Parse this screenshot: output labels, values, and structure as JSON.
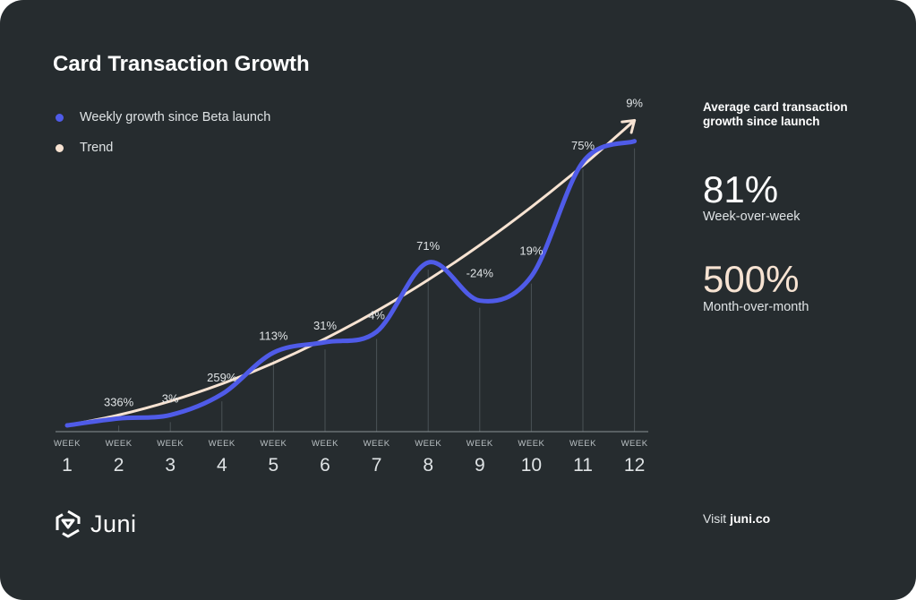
{
  "title": "Card Transaction Growth",
  "legend": [
    {
      "label": "Weekly growth since Beta launch",
      "color": "#4f5be8"
    },
    {
      "label": "Trend",
      "color": "#f7e3d2"
    }
  ],
  "side": {
    "heading": "Average card transaction growth since launch",
    "stat1_value": "81%",
    "stat1_label": "Week-over-week",
    "stat2_value": "500%",
    "stat2_label": "Month-over-month",
    "visit_prefix": "Visit",
    "visit_link": "juni.co"
  },
  "brand": {
    "name": "Juni"
  },
  "colors": {
    "background": "#262c2f",
    "series": "#4f5be8",
    "trend": "#f7e3d2",
    "highlight": "#f7e3d2"
  },
  "chart_data": {
    "type": "line",
    "title": "Card Transaction Growth",
    "x_tick_prefix": "WEEK",
    "x": [
      1,
      2,
      3,
      4,
      5,
      6,
      7,
      8,
      9,
      10,
      11,
      12
    ],
    "series": [
      {
        "name": "Weekly growth since Beta launch",
        "relative_volume": [
          0.0,
          0.02,
          0.03,
          0.09,
          0.21,
          0.24,
          0.27,
          0.47,
          0.36,
          0.43,
          0.76,
          0.82
        ],
        "data_labels": [
          "",
          "336%",
          "3%",
          "259%",
          "113%",
          "31%",
          "4%",
          "71%",
          "-24%",
          "19%",
          "75%",
          "9%"
        ]
      },
      {
        "name": "Trend",
        "relative_volume": [
          0.0,
          0.03,
          0.07,
          0.12,
          0.18,
          0.25,
          0.33,
          0.42,
          0.52,
          0.63,
          0.75,
          0.88
        ]
      }
    ],
    "grid": false,
    "legend_position": "top-left"
  }
}
